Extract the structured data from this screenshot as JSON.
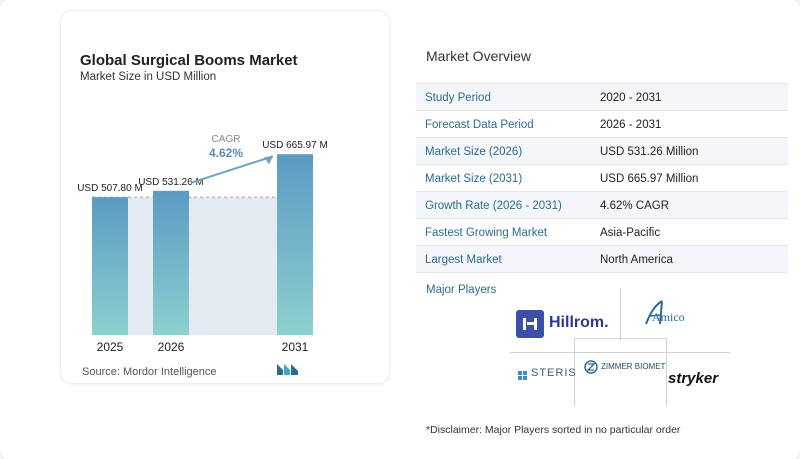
{
  "chart_data": {
    "type": "bar",
    "title": "Global Surgical Booms Market",
    "subtitle": "Market Size in USD Million",
    "categories": [
      "2025",
      "2026",
      "2031"
    ],
    "values": [
      507.8,
      531.26,
      665.97
    ],
    "data_labels": [
      "USD 507.80 M",
      "USD 531.26 M",
      "USD 665.97 M"
    ],
    "annotation": {
      "label": "CAGR",
      "value": "4.62%"
    },
    "ylim": [
      0,
      700
    ],
    "grid": false,
    "bar_color_top": "#5b9bc3",
    "bar_color_bottom": "#8cd0cf"
  },
  "source": "Source:  Mordor Intelligence",
  "overview": {
    "title": "Market Overview",
    "rows": [
      {
        "key": "Study Period",
        "value": "2020 - 2031"
      },
      {
        "key": "Forecast Data Period",
        "value": "2026 - 2031"
      },
      {
        "key": "Market Size (2026)",
        "value": "USD 531.26 Million"
      },
      {
        "key": "Market Size (2031)",
        "value": "USD 665.97 Million"
      },
      {
        "key": "Growth Rate (2026 - 2031)",
        "value": "4.62% CAGR"
      },
      {
        "key": "Fastest Growing Market",
        "value": "Asia-Pacific"
      },
      {
        "key": "Largest Market",
        "value": "North America"
      }
    ]
  },
  "players": {
    "title": "Major Players",
    "logos": [
      "Hillrom.",
      "Amico",
      "STERIS",
      "ZIMMER BIOMET",
      "stryker"
    ]
  },
  "disclaimer": "*Disclaimer: Major Players sorted in no particular order",
  "colors": {
    "accent": "#2b6c90",
    "bar": "#6aaed0"
  }
}
